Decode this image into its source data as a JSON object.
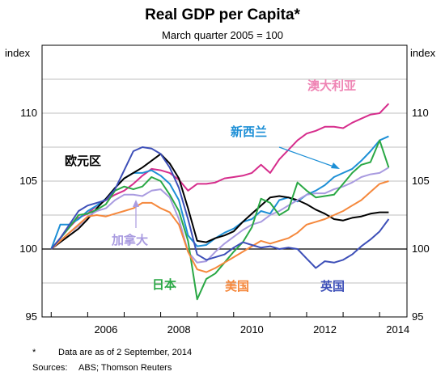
{
  "chart_data": {
    "type": "line",
    "title": "Real GDP per Capita*",
    "subtitle": "March quarter 2005 = 100",
    "ylabel_left": "index",
    "ylabel_right": "index",
    "ylim": [
      95,
      115
    ],
    "yticks": [
      95,
      100,
      105,
      110
    ],
    "xlim": [
      2004.75,
      2014.75
    ],
    "xticks": [
      "2006",
      "2008",
      "2010",
      "2012",
      "2014"
    ],
    "grid": true,
    "series": [
      {
        "name": "澳大利亚",
        "color": "#d62d8c",
        "x": [
          2005.0,
          2005.25,
          2005.5,
          2005.75,
          2006.0,
          2006.25,
          2006.5,
          2006.75,
          2007.0,
          2007.25,
          2007.5,
          2007.75,
          2008.0,
          2008.25,
          2008.5,
          2008.75,
          2009.0,
          2009.25,
          2009.5,
          2009.75,
          2010.0,
          2010.25,
          2010.5,
          2010.75,
          2011.0,
          2011.25,
          2011.5,
          2011.75,
          2012.0,
          2012.25,
          2012.5,
          2012.75,
          2013.0,
          2013.25,
          2013.5,
          2013.75,
          2014.0,
          2014.25
        ],
        "values": [
          100.0,
          100.8,
          101.6,
          102.3,
          102.6,
          103.2,
          103.6,
          104.0,
          104.3,
          104.8,
          105.4,
          105.9,
          105.8,
          105.6,
          105.1,
          104.3,
          104.8,
          104.8,
          104.9,
          105.2,
          105.3,
          105.4,
          105.6,
          106.2,
          105.6,
          106.6,
          107.3,
          108.0,
          108.5,
          108.7,
          109.0,
          109.0,
          108.9,
          109.3,
          109.6,
          109.9,
          110.0,
          110.7
        ]
      },
      {
        "name": "新西兰",
        "color": "#1d8fd6",
        "x": [
          2005.0,
          2005.25,
          2005.5,
          2005.75,
          2006.0,
          2006.25,
          2006.5,
          2006.75,
          2007.0,
          2007.25,
          2007.5,
          2007.75,
          2008.0,
          2008.25,
          2008.5,
          2008.75,
          2009.0,
          2009.25,
          2009.5,
          2009.75,
          2010.0,
          2010.25,
          2010.5,
          2010.75,
          2011.0,
          2011.25,
          2011.5,
          2011.75,
          2012.0,
          2012.25,
          2012.5,
          2012.75,
          2013.0,
          2013.25,
          2013.5,
          2013.75,
          2014.0,
          2014.25
        ],
        "values": [
          100.0,
          101.8,
          101.8,
          102.2,
          102.8,
          103.2,
          103.7,
          104.5,
          105.2,
          105.6,
          105.6,
          105.8,
          105.4,
          104.8,
          103.6,
          101.0,
          100.2,
          100.3,
          100.8,
          101.2,
          101.5,
          102.0,
          102.2,
          102.8,
          102.6,
          103.6,
          103.8,
          103.5,
          104.0,
          104.3,
          104.7,
          105.3,
          105.6,
          105.9,
          106.5,
          107.2,
          108.0,
          108.3
        ]
      },
      {
        "name": "欧元区",
        "color": "#000000",
        "x": [
          2005.0,
          2005.25,
          2005.5,
          2005.75,
          2006.0,
          2006.25,
          2006.5,
          2006.75,
          2007.0,
          2007.25,
          2007.5,
          2007.75,
          2008.0,
          2008.25,
          2008.5,
          2008.75,
          2009.0,
          2009.25,
          2009.5,
          2009.75,
          2010.0,
          2010.25,
          2010.5,
          2010.75,
          2011.0,
          2011.25,
          2011.5,
          2011.75,
          2012.0,
          2012.25,
          2012.5,
          2012.75,
          2013.0,
          2013.25,
          2013.5,
          2013.75,
          2014.0,
          2014.25
        ],
        "values": [
          100.0,
          100.5,
          101.0,
          101.5,
          102.2,
          103.0,
          103.7,
          104.5,
          105.2,
          105.6,
          106.0,
          106.5,
          107.0,
          106.3,
          105.2,
          103.0,
          100.6,
          100.5,
          100.8,
          101.0,
          101.3,
          102.0,
          102.6,
          103.2,
          103.8,
          103.9,
          103.8,
          103.6,
          103.3,
          102.9,
          102.6,
          102.2,
          102.1,
          102.3,
          102.4,
          102.6,
          102.7,
          102.7
        ]
      },
      {
        "name": "加拿大",
        "color": "#a99be0",
        "x": [
          2005.0,
          2005.25,
          2005.5,
          2005.75,
          2006.0,
          2006.25,
          2006.5,
          2006.75,
          2007.0,
          2007.25,
          2007.5,
          2007.75,
          2008.0,
          2008.25,
          2008.5,
          2008.75,
          2009.0,
          2009.25,
          2009.5,
          2009.75,
          2010.0,
          2010.25,
          2010.5,
          2010.75,
          2011.0,
          2011.25,
          2011.5,
          2011.75,
          2012.0,
          2012.25,
          2012.5,
          2012.75,
          2013.0,
          2013.25,
          2013.5,
          2013.75,
          2014.0,
          2014.25
        ],
        "values": [
          100.0,
          100.6,
          101.2,
          101.7,
          102.4,
          102.8,
          103.0,
          103.6,
          104.0,
          104.0,
          103.9,
          104.3,
          104.4,
          103.8,
          102.2,
          99.8,
          99.0,
          99.1,
          99.8,
          100.4,
          100.9,
          101.4,
          101.8,
          102.0,
          102.5,
          102.8,
          103.2,
          103.6,
          104.0,
          104.1,
          104.1,
          104.4,
          104.6,
          104.9,
          105.3,
          105.5,
          105.6,
          106.0
        ]
      },
      {
        "name": "日本",
        "color": "#2aa845",
        "x": [
          2005.0,
          2005.25,
          2005.5,
          2005.75,
          2006.0,
          2006.25,
          2006.5,
          2006.75,
          2007.0,
          2007.25,
          2007.5,
          2007.75,
          2008.0,
          2008.25,
          2008.5,
          2008.75,
          2009.0,
          2009.25,
          2009.5,
          2009.75,
          2010.0,
          2010.25,
          2010.5,
          2010.75,
          2011.0,
          2011.25,
          2011.5,
          2011.75,
          2012.0,
          2012.25,
          2012.5,
          2012.75,
          2013.0,
          2013.25,
          2013.5,
          2013.75,
          2014.0,
          2014.25
        ],
        "values": [
          100.0,
          100.8,
          101.6,
          102.5,
          102.6,
          102.9,
          103.3,
          104.3,
          104.6,
          104.4,
          104.6,
          105.3,
          105.0,
          104.0,
          102.8,
          100.6,
          96.3,
          97.8,
          98.2,
          99.0,
          99.8,
          100.5,
          101.6,
          103.7,
          103.4,
          102.5,
          102.9,
          104.9,
          104.3,
          103.8,
          103.9,
          104.0,
          104.8,
          105.6,
          106.2,
          106.4,
          108.0,
          106.0
        ]
      },
      {
        "name": "美国",
        "color": "#f5883c",
        "x": [
          2005.0,
          2005.25,
          2005.5,
          2005.75,
          2006.0,
          2006.25,
          2006.5,
          2006.75,
          2007.0,
          2007.25,
          2007.5,
          2007.75,
          2008.0,
          2008.25,
          2008.5,
          2008.75,
          2009.0,
          2009.25,
          2009.5,
          2009.75,
          2010.0,
          2010.25,
          2010.5,
          2010.75,
          2011.0,
          2011.25,
          2011.5,
          2011.75,
          2012.0,
          2012.25,
          2012.5,
          2012.75,
          2013.0,
          2013.25,
          2013.5,
          2013.75,
          2014.0,
          2014.25
        ],
        "values": [
          100.0,
          100.6,
          101.2,
          101.8,
          102.4,
          102.5,
          102.4,
          102.6,
          102.8,
          103.0,
          103.4,
          103.4,
          103.0,
          102.7,
          101.8,
          99.8,
          98.5,
          98.3,
          98.6,
          99.0,
          99.4,
          99.8,
          100.2,
          100.6,
          100.4,
          100.6,
          100.8,
          101.2,
          101.8,
          102.0,
          102.2,
          102.5,
          102.8,
          103.2,
          103.6,
          104.2,
          104.8,
          105.0
        ]
      },
      {
        "name": "英国",
        "color": "#3d4fb8",
        "x": [
          2005.0,
          2005.25,
          2005.5,
          2005.75,
          2006.0,
          2006.25,
          2006.5,
          2006.75,
          2007.0,
          2007.25,
          2007.5,
          2007.75,
          2008.0,
          2008.25,
          2008.5,
          2008.75,
          2009.0,
          2009.25,
          2009.5,
          2009.75,
          2010.0,
          2010.25,
          2010.5,
          2010.75,
          2011.0,
          2011.25,
          2011.5,
          2011.75,
          2012.0,
          2012.25,
          2012.5,
          2012.75,
          2013.0,
          2013.25,
          2013.5,
          2013.75,
          2014.0,
          2014.25
        ],
        "values": [
          100.0,
          100.8,
          101.8,
          102.8,
          103.2,
          103.4,
          103.6,
          104.4,
          105.8,
          107.2,
          107.5,
          107.4,
          107.0,
          106.0,
          104.5,
          102.2,
          99.6,
          99.2,
          99.4,
          99.6,
          100.1,
          100.5,
          100.3,
          100.1,
          100.2,
          100.0,
          100.1,
          100.0,
          99.3,
          98.6,
          99.1,
          99.0,
          99.2,
          99.6,
          100.2,
          100.7,
          101.3,
          102.2
        ]
      }
    ]
  },
  "labels": {
    "australia": "澳大利亚",
    "new_zealand": "新西兰",
    "euro_area": "欧元区",
    "canada": "加拿大",
    "japan": "日本",
    "us": "美国",
    "uk": "英国"
  },
  "footnotes": {
    "asterisk": "*",
    "note": "Data are as of 2 September, 2014",
    "sources_label": "Sources:",
    "sources": "ABS; Thomson Reuters"
  }
}
